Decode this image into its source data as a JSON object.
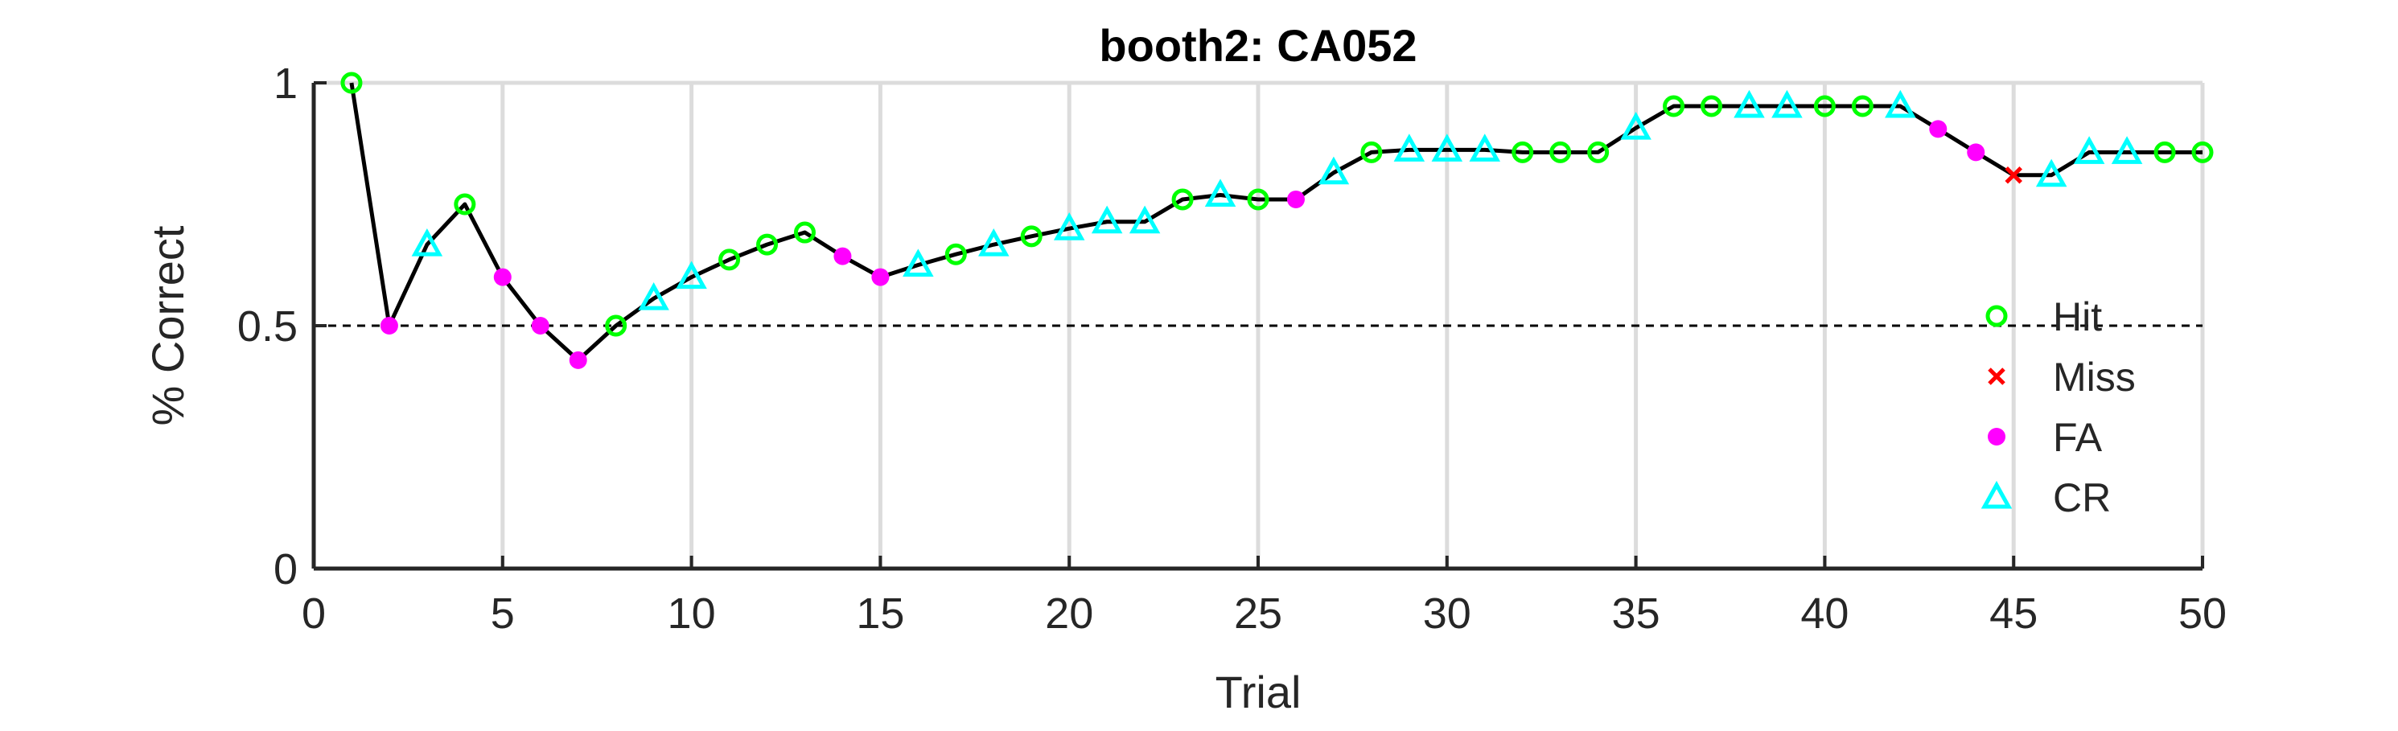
{
  "chart_data": {
    "type": "line",
    "title": "booth2: CA052",
    "xlabel": "Trial",
    "ylabel": "% Correct",
    "xlim": [
      0,
      50
    ],
    "ylim": [
      0,
      1
    ],
    "xticks": [
      "0",
      "5",
      "10",
      "15",
      "20",
      "25",
      "30",
      "35",
      "40",
      "45",
      "50"
    ],
    "yticks": [
      "0",
      "0.5",
      "1"
    ],
    "grid": "vertical",
    "legend_position": "right",
    "reference_line": 0.5,
    "line_color": "#000000",
    "x": [
      1,
      2,
      3,
      4,
      5,
      6,
      7,
      8,
      9,
      10,
      11,
      12,
      13,
      14,
      15,
      16,
      17,
      18,
      19,
      20,
      21,
      22,
      23,
      24,
      25,
      26,
      27,
      28,
      29,
      30,
      31,
      32,
      33,
      34,
      35,
      36,
      37,
      38,
      39,
      40,
      41,
      42,
      43,
      44,
      45,
      46,
      47,
      48,
      49,
      50
    ],
    "y": [
      1.0,
      0.5,
      0.667,
      0.75,
      0.6,
      0.5,
      0.429,
      0.5,
      0.556,
      0.6,
      0.636,
      0.667,
      0.692,
      0.643,
      0.6,
      0.625,
      0.647,
      0.667,
      0.684,
      0.7,
      0.714,
      0.714,
      0.76,
      0.769,
      0.76,
      0.76,
      0.815,
      0.857,
      0.862,
      0.862,
      0.862,
      0.857,
      0.857,
      0.857,
      0.907,
      0.952,
      0.952,
      0.952,
      0.952,
      0.952,
      0.952,
      0.952,
      0.905,
      0.857,
      0.81,
      0.81,
      0.857,
      0.857,
      0.857,
      0.857
    ],
    "outcomes": [
      "Hit",
      "FA",
      "CR",
      "Hit",
      "FA",
      "FA",
      "FA",
      "Hit",
      "CR",
      "CR",
      "Hit",
      "Hit",
      "Hit",
      "FA",
      "FA",
      "CR",
      "Hit",
      "CR",
      "Hit",
      "CR",
      "CR",
      "CR",
      "Hit",
      "CR",
      "Hit",
      "FA",
      "CR",
      "Hit",
      "CR",
      "CR",
      "CR",
      "Hit",
      "Hit",
      "Hit",
      "CR",
      "Hit",
      "Hit",
      "CR",
      "CR",
      "Hit",
      "Hit",
      "CR",
      "FA",
      "FA",
      "Miss",
      "CR",
      "CR",
      "CR",
      "Hit",
      "Hit"
    ],
    "legend": [
      {
        "key": "Hit",
        "label": "Hit",
        "color": "#00ff00",
        "marker": "circle"
      },
      {
        "key": "Miss",
        "label": "Miss",
        "color": "#ff0000",
        "marker": "x"
      },
      {
        "key": "FA",
        "label": "FA",
        "color": "#ff00ff",
        "marker": "dot"
      },
      {
        "key": "CR",
        "label": "CR",
        "color": "#00ffff",
        "marker": "triangle"
      }
    ]
  }
}
